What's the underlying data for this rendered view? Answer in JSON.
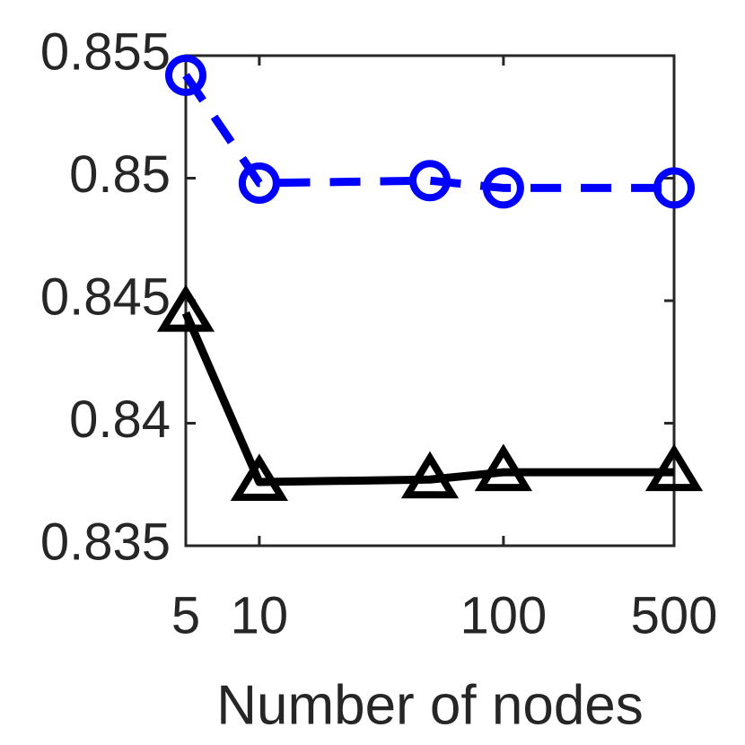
{
  "chart_data": {
    "type": "line",
    "xlabel": "Number of nodes",
    "x": [
      5,
      10,
      50,
      100,
      500
    ],
    "xscale": "log",
    "xlim": [
      5,
      500
    ],
    "xticks": [
      5,
      10,
      100,
      500
    ],
    "ylim": [
      0.835,
      0.855
    ],
    "yticks": [
      0.835,
      0.84,
      0.845,
      0.85,
      0.855
    ],
    "series": [
      {
        "color": "#0000ff",
        "linestyle": "dashed",
        "marker": "circle",
        "values": [
          0.8542,
          0.8498,
          0.8499,
          0.8496,
          0.8496
        ]
      },
      {
        "color": "#000000",
        "linestyle": "solid",
        "marker": "triangle",
        "values": [
          0.8445,
          0.8376,
          0.8377,
          0.838,
          0.838
        ]
      }
    ]
  }
}
